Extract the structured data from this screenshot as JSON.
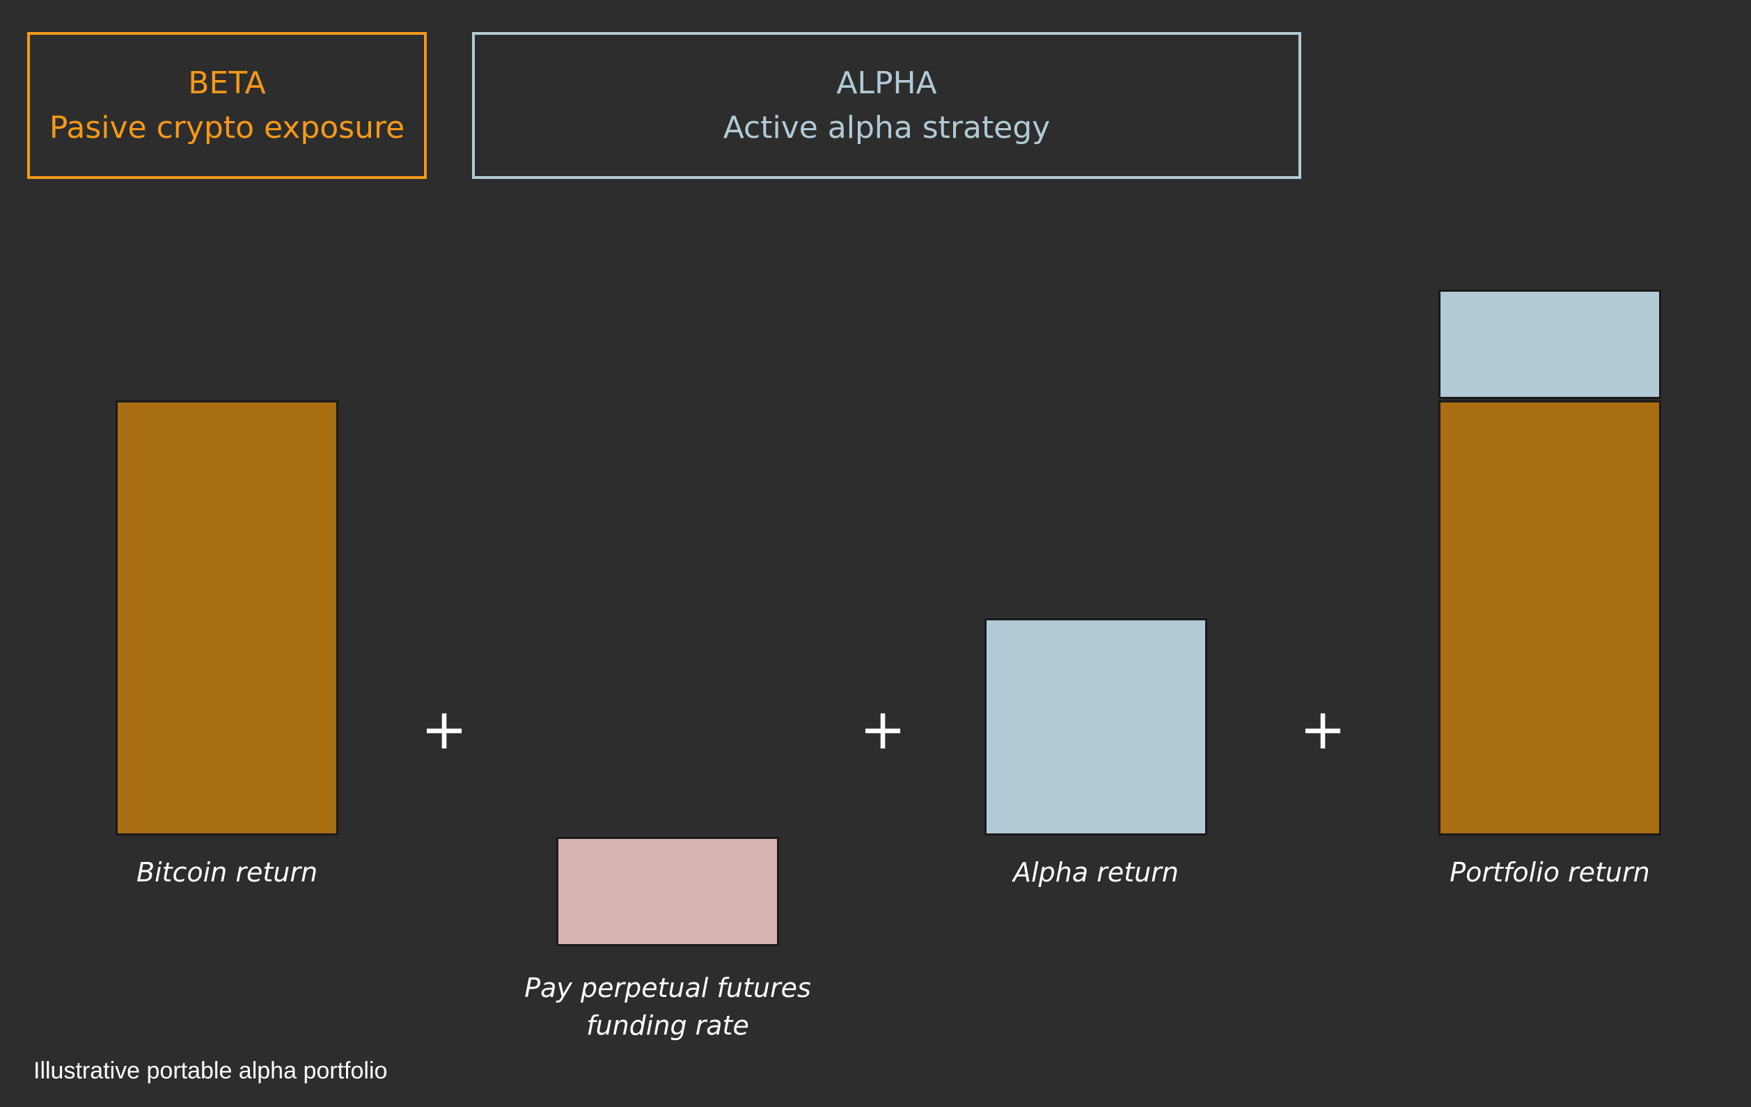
{
  "header": {
    "beta": {
      "title": "BETA",
      "subtitle": "Pasive crypto exposure"
    },
    "alpha": {
      "title": "ALPHA",
      "subtitle": "Active alpha strategy"
    }
  },
  "components": {
    "bitcoin_label": "Bitcoin return",
    "funding_label_line1": "Pay perpetual futures",
    "funding_label_line2": "funding rate",
    "alpha_label": "Alpha return",
    "portfolio_label": "Portfolio return",
    "operator": "+"
  },
  "caption": "Illustrative portable alpha portfolio",
  "colors": {
    "beta": "#f5991a",
    "alpha": "#b2cad6",
    "bitcoin_bar": "#a96d12",
    "alpha_bar": "#b2c9d6",
    "funding_bar": "#d8b2b0",
    "background": "#2d2d2d"
  }
}
